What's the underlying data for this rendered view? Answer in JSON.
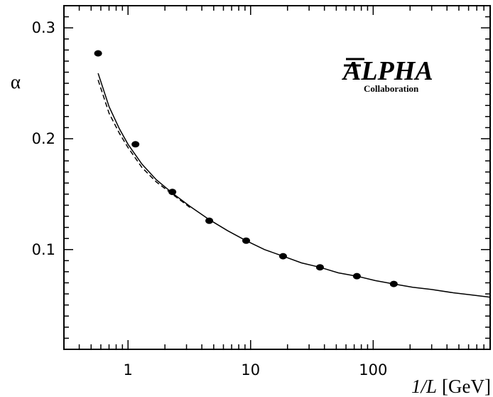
{
  "chart_data": {
    "type": "scatter",
    "xlabel_italic": "1/L",
    "xlabel_unit": "[GeV]",
    "ylabel": "α",
    "x_scale": "log",
    "xlim": [
      0.3,
      900
    ],
    "ylim": [
      0.01,
      0.32
    ],
    "xticks": [
      {
        "value": 1,
        "label": "1"
      },
      {
        "value": 10,
        "label": "10"
      },
      {
        "value": 100,
        "label": "100"
      }
    ],
    "yticks": [
      {
        "value": 0.1,
        "label": "0.1"
      },
      {
        "value": 0.2,
        "label": "0.2"
      },
      {
        "value": 0.3,
        "label": "0.3"
      }
    ],
    "grid": false,
    "logo": {
      "main": "ALPHA",
      "sub": "Collaboration"
    },
    "series": [
      {
        "kind": "points",
        "marker": "filled-circle",
        "x": [
          0.57,
          1.15,
          2.3,
          4.6,
          9.2,
          18.4,
          36.8,
          73.6,
          147.2
        ],
        "y": [
          0.277,
          0.195,
          0.152,
          0.126,
          0.108,
          0.094,
          0.084,
          0.076,
          0.069
        ]
      },
      {
        "kind": "solid-line",
        "x": [
          0.57,
          0.7,
          0.85,
          1.0,
          1.3,
          1.7,
          2.3,
          3.2,
          4.6,
          6.5,
          9.2,
          13,
          18.4,
          26,
          36.8,
          52,
          73.6,
          104,
          147.2,
          210,
          300,
          450,
          650,
          900
        ],
        "y": [
          0.259,
          0.229,
          0.209,
          0.195,
          0.177,
          0.163,
          0.151,
          0.139,
          0.127,
          0.117,
          0.108,
          0.1,
          0.094,
          0.088,
          0.084,
          0.079,
          0.076,
          0.072,
          0.069,
          0.066,
          0.064,
          0.061,
          0.059,
          0.057
        ]
      },
      {
        "kind": "dashed-line",
        "x": [
          0.57,
          0.7,
          0.85,
          1.0,
          1.3,
          1.7,
          2.3,
          3.2
        ],
        "y": [
          0.253,
          0.223,
          0.205,
          0.192,
          0.174,
          0.161,
          0.15,
          0.138
        ]
      }
    ]
  }
}
